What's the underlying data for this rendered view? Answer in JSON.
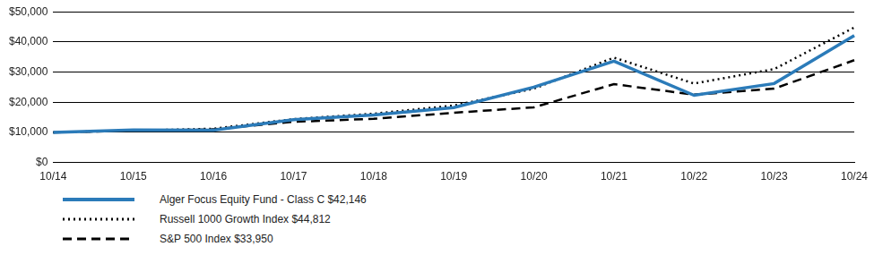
{
  "chart_data": {
    "type": "line",
    "categories": [
      "10/14",
      "10/15",
      "10/16",
      "10/17",
      "10/18",
      "10/19",
      "10/20",
      "10/21",
      "10/22",
      "10/23",
      "10/24"
    ],
    "series": [
      {
        "name": "Alger Focus Equity Fund - Class C $42,146",
        "color": "#2b7bb9",
        "line_style": "solid",
        "values": [
          10000,
          10800,
          10700,
          14200,
          15800,
          18200,
          25000,
          33600,
          22300,
          26200,
          42146
        ]
      },
      {
        "name": "Russell 1000 Growth Index $44,812",
        "color": "#000000",
        "line_style": "dotted",
        "values": [
          10000,
          10600,
          11200,
          14400,
          16200,
          18900,
          24500,
          34800,
          26200,
          31000,
          44812
        ]
      },
      {
        "name": "S&P 500 Index $33,950",
        "color": "#000000",
        "line_style": "dashed",
        "values": [
          10000,
          10500,
          11000,
          13500,
          14500,
          16500,
          18300,
          26000,
          22500,
          24500,
          33950
        ]
      }
    ],
    "ylim": [
      0,
      50000
    ],
    "yticks": [
      {
        "value": 0,
        "label": "$0"
      },
      {
        "value": 10000,
        "label": "$10,000"
      },
      {
        "value": 20000,
        "label": "$20,000"
      },
      {
        "value": 30000,
        "label": "$30,000"
      },
      {
        "value": 40000,
        "label": "$40,000"
      },
      {
        "value": 50000,
        "label": "$50,000"
      }
    ],
    "grid": true,
    "legend": "bottom"
  }
}
